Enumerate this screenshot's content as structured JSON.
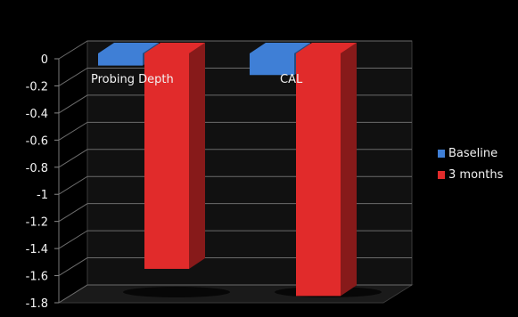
{
  "colors": {
    "baseline": "#3f7fd6",
    "three_months": "#e12b2b",
    "background": "#000000",
    "grid": "#6b6b6b"
  },
  "chart_data": {
    "type": "bar",
    "three_d": true,
    "categories": [
      "Probing Depth",
      "CAL"
    ],
    "series": [
      {
        "name": "Baseline",
        "values": [
          -0.05,
          -0.12
        ]
      },
      {
        "name": "3 months",
        "values": [
          -1.55,
          -1.75
        ]
      }
    ],
    "ylim": [
      -1.8,
      0
    ],
    "yticks": [
      "0",
      "-0.2",
      "-0.4",
      "-0.6",
      "-0.8",
      "-1",
      "-1.2",
      "-1.4",
      "-1.6",
      "-1.8"
    ],
    "ytick_values": [
      0,
      -0.2,
      -0.4,
      -0.6,
      -0.8,
      -1,
      -1.2,
      -1.4,
      -1.6,
      -1.8
    ],
    "grid": true,
    "legend_position": "right",
    "title": "",
    "xlabel": "",
    "ylabel": ""
  }
}
